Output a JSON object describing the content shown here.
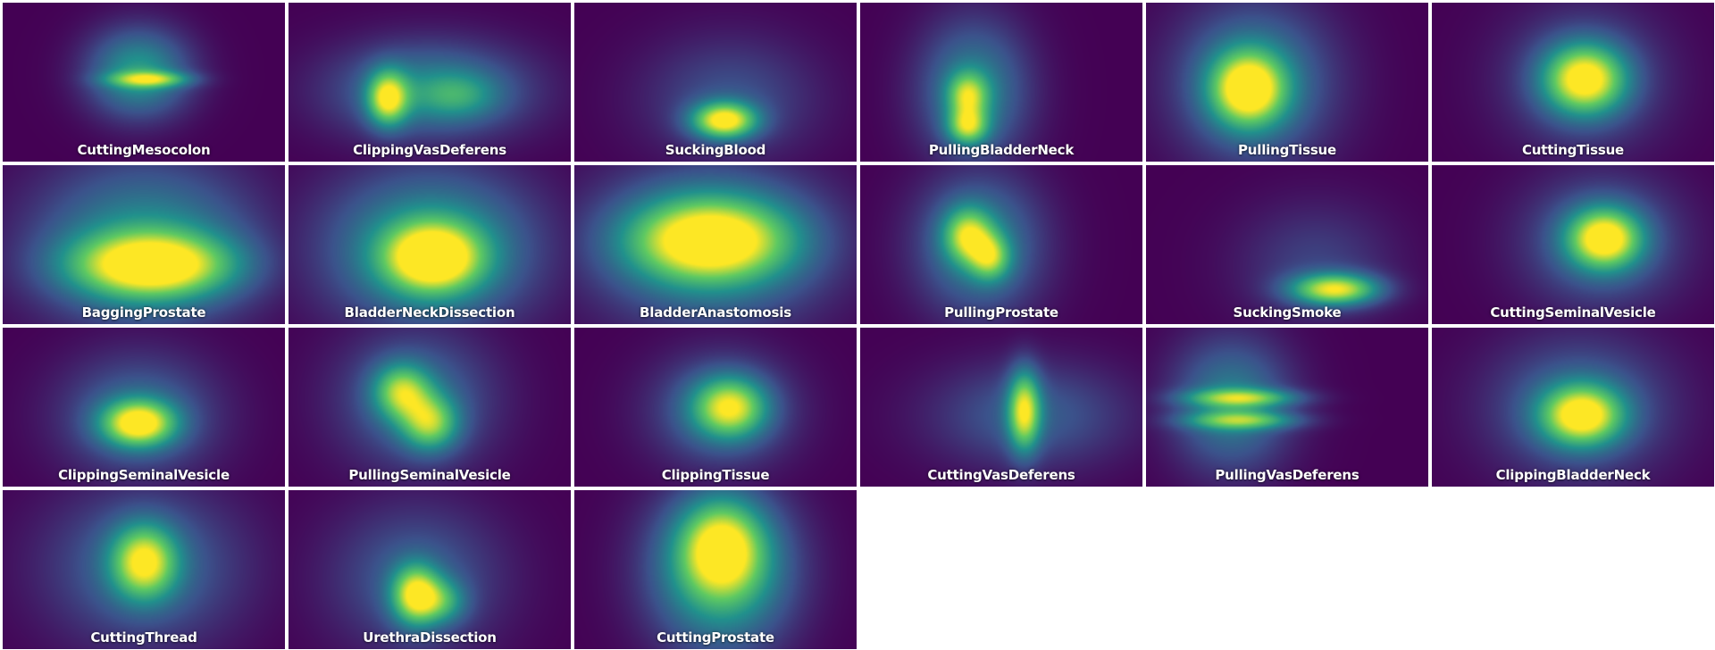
{
  "chart_data": {
    "type": "heatmap",
    "colormap": "viridis",
    "layout": {
      "columns": 6,
      "rows": 4
    },
    "panels": [
      {
        "label": "CuttingMesocolon",
        "blobs": [
          {
            "cx": 0.48,
            "cy": 0.44,
            "sx": 0.13,
            "sy": 0.2,
            "w": 0.55
          },
          {
            "cx": 0.52,
            "cy": 0.48,
            "sx": 0.1,
            "sy": 0.035,
            "w": 0.55
          }
        ]
      },
      {
        "label": "ClippingVasDeferens",
        "blobs": [
          {
            "cx": 0.35,
            "cy": 0.6,
            "sx": 0.05,
            "sy": 0.12,
            "w": 0.75
          },
          {
            "cx": 0.5,
            "cy": 0.55,
            "sx": 0.25,
            "sy": 0.22,
            "w": 0.45
          },
          {
            "cx": 0.6,
            "cy": 0.58,
            "sx": 0.1,
            "sy": 0.1,
            "w": 0.25
          }
        ]
      },
      {
        "label": "SuckingBlood",
        "blobs": [
          {
            "cx": 0.53,
            "cy": 0.74,
            "sx": 0.08,
            "sy": 0.08,
            "w": 0.9
          },
          {
            "cx": 0.55,
            "cy": 0.6,
            "sx": 0.22,
            "sy": 0.28,
            "w": 0.25
          }
        ]
      },
      {
        "label": "PullingBladderNeck",
        "blobs": [
          {
            "cx": 0.38,
            "cy": 0.58,
            "sx": 0.05,
            "sy": 0.1,
            "w": 0.55
          },
          {
            "cx": 0.38,
            "cy": 0.78,
            "sx": 0.05,
            "sy": 0.08,
            "w": 0.6
          },
          {
            "cx": 0.4,
            "cy": 0.55,
            "sx": 0.14,
            "sy": 0.32,
            "w": 0.45
          }
        ]
      },
      {
        "label": "PullingTissue",
        "blobs": [
          {
            "cx": 0.36,
            "cy": 0.54,
            "sx": 0.09,
            "sy": 0.16,
            "w": 0.85
          },
          {
            "cx": 0.38,
            "cy": 0.5,
            "sx": 0.2,
            "sy": 0.36,
            "w": 0.45
          }
        ]
      },
      {
        "label": "CuttingTissue",
        "blobs": [
          {
            "cx": 0.54,
            "cy": 0.48,
            "sx": 0.1,
            "sy": 0.15,
            "w": 0.85
          },
          {
            "cx": 0.54,
            "cy": 0.48,
            "sx": 0.2,
            "sy": 0.32,
            "w": 0.3
          }
        ]
      },
      {
        "label": "BaggingProstate",
        "blobs": [
          {
            "cx": 0.53,
            "cy": 0.63,
            "sx": 0.2,
            "sy": 0.14,
            "w": 0.85
          },
          {
            "cx": 0.5,
            "cy": 0.5,
            "sx": 0.28,
            "sy": 0.38,
            "w": 0.5
          }
        ]
      },
      {
        "label": "BladderNeckDissection",
        "blobs": [
          {
            "cx": 0.51,
            "cy": 0.58,
            "sx": 0.12,
            "sy": 0.15,
            "w": 0.85
          },
          {
            "cx": 0.5,
            "cy": 0.52,
            "sx": 0.27,
            "sy": 0.36,
            "w": 0.55
          }
        ]
      },
      {
        "label": "BladderAnastomosis",
        "blobs": [
          {
            "cx": 0.48,
            "cy": 0.47,
            "sx": 0.2,
            "sy": 0.18,
            "w": 0.85
          },
          {
            "cx": 0.48,
            "cy": 0.5,
            "sx": 0.3,
            "sy": 0.38,
            "w": 0.45
          }
        ]
      },
      {
        "label": "PullingProstate",
        "blobs": [
          {
            "cx": 0.38,
            "cy": 0.44,
            "sx": 0.06,
            "sy": 0.12,
            "w": 0.6
          },
          {
            "cx": 0.46,
            "cy": 0.58,
            "sx": 0.05,
            "sy": 0.1,
            "w": 0.5
          },
          {
            "cx": 0.42,
            "cy": 0.5,
            "sx": 0.16,
            "sy": 0.32,
            "w": 0.45
          }
        ]
      },
      {
        "label": "SuckingSmoke",
        "blobs": [
          {
            "cx": 0.67,
            "cy": 0.78,
            "sx": 0.11,
            "sy": 0.07,
            "w": 0.85
          },
          {
            "cx": 0.6,
            "cy": 0.62,
            "sx": 0.2,
            "sy": 0.28,
            "w": 0.2
          }
        ]
      },
      {
        "label": "CuttingSeminalVesicle",
        "blobs": [
          {
            "cx": 0.61,
            "cy": 0.46,
            "sx": 0.09,
            "sy": 0.13,
            "w": 0.85
          },
          {
            "cx": 0.6,
            "cy": 0.48,
            "sx": 0.2,
            "sy": 0.3,
            "w": 0.35
          }
        ]
      },
      {
        "label": "ClippingSeminalVesicle",
        "blobs": [
          {
            "cx": 0.48,
            "cy": 0.6,
            "sx": 0.09,
            "sy": 0.1,
            "w": 0.85
          },
          {
            "cx": 0.48,
            "cy": 0.55,
            "sx": 0.2,
            "sy": 0.28,
            "w": 0.35
          }
        ]
      },
      {
        "label": "PullingSeminalVesicle",
        "blobs": [
          {
            "cx": 0.4,
            "cy": 0.4,
            "sx": 0.07,
            "sy": 0.12,
            "w": 0.6
          },
          {
            "cx": 0.5,
            "cy": 0.6,
            "sx": 0.07,
            "sy": 0.12,
            "w": 0.6
          },
          {
            "cx": 0.45,
            "cy": 0.45,
            "sx": 0.2,
            "sy": 0.32,
            "w": 0.35
          }
        ]
      },
      {
        "label": "ClippingTissue",
        "blobs": [
          {
            "cx": 0.55,
            "cy": 0.5,
            "sx": 0.09,
            "sy": 0.13,
            "w": 0.7
          },
          {
            "cx": 0.52,
            "cy": 0.52,
            "sx": 0.18,
            "sy": 0.26,
            "w": 0.35
          }
        ]
      },
      {
        "label": "CuttingVasDeferens",
        "blobs": [
          {
            "cx": 0.58,
            "cy": 0.52,
            "sx": 0.04,
            "sy": 0.18,
            "w": 0.75
          },
          {
            "cx": 0.6,
            "cy": 0.55,
            "sx": 0.25,
            "sy": 0.24,
            "w": 0.3
          }
        ]
      },
      {
        "label": "PullingVasDeferens",
        "blobs": [
          {
            "cx": 0.34,
            "cy": 0.44,
            "sx": 0.14,
            "sy": 0.04,
            "w": 0.55
          },
          {
            "cx": 0.34,
            "cy": 0.58,
            "sx": 0.14,
            "sy": 0.04,
            "w": 0.5
          },
          {
            "cx": 0.3,
            "cy": 0.48,
            "sx": 0.15,
            "sy": 0.3,
            "w": 0.45
          }
        ]
      },
      {
        "label": "ClippingBladderNeck",
        "blobs": [
          {
            "cx": 0.53,
            "cy": 0.55,
            "sx": 0.1,
            "sy": 0.13,
            "w": 0.85
          },
          {
            "cx": 0.52,
            "cy": 0.5,
            "sx": 0.23,
            "sy": 0.32,
            "w": 0.35
          }
        ]
      },
      {
        "label": "CuttingThread",
        "blobs": [
          {
            "cx": 0.5,
            "cy": 0.45,
            "sx": 0.08,
            "sy": 0.16,
            "w": 0.75
          },
          {
            "cx": 0.5,
            "cy": 0.48,
            "sx": 0.25,
            "sy": 0.36,
            "w": 0.35
          }
        ]
      },
      {
        "label": "UrethraDissection",
        "blobs": [
          {
            "cx": 0.45,
            "cy": 0.66,
            "sx": 0.06,
            "sy": 0.13,
            "w": 0.8
          },
          {
            "cx": 0.55,
            "cy": 0.7,
            "sx": 0.06,
            "sy": 0.1,
            "w": 0.35
          },
          {
            "cx": 0.45,
            "cy": 0.55,
            "sx": 0.22,
            "sy": 0.34,
            "w": 0.3
          }
        ]
      },
      {
        "label": "CuttingProstate",
        "blobs": [
          {
            "cx": 0.52,
            "cy": 0.36,
            "sx": 0.1,
            "sy": 0.2,
            "w": 0.65
          },
          {
            "cx": 0.52,
            "cy": 0.5,
            "sx": 0.18,
            "sy": 0.36,
            "w": 0.65
          }
        ]
      }
    ]
  }
}
